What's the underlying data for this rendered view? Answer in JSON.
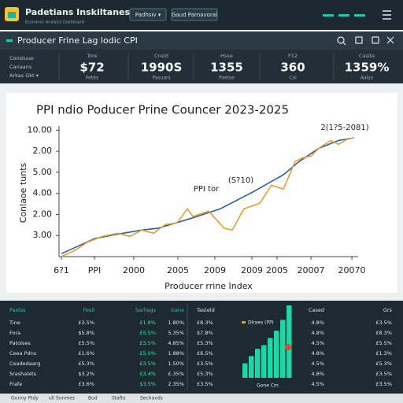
{
  "top_bar": {
    "logo": "Padetians Inskiltanes",
    "logo_sub": "Economic Analysis Dashboard",
    "buttons": [
      "Padhsiv ▾",
      "Gaud Parnavoral"
    ]
  },
  "header": {
    "title": "Producer Frine Lag lodic CPI"
  },
  "filter": {
    "lines": [
      "Constuuo",
      "Canaans",
      "Arkas Gkt ▾"
    ]
  },
  "kpis": [
    {
      "label": "Tore",
      "value": "$72",
      "sub": "Fetes"
    },
    {
      "label": "Cnsld",
      "value": "1990S",
      "sub": "Pasuars"
    },
    {
      "label": "Hsse",
      "value": "1355",
      "sub": "Paetse"
    },
    {
      "label": "F12",
      "value": "360",
      "sub": "Cal"
    },
    {
      "label": "Casite",
      "value": "1359%",
      "sub": "Aalys"
    }
  ],
  "chart_data": [
    {
      "type": "line",
      "title": "PPI ndio Poducer Prine Councer 2023-2025",
      "x_label": "Producer rrine Index",
      "y_label": "Conlaoe tunts",
      "annotations": [
        "PPI tor",
        "(S?10)",
        "2(1?5-2081)"
      ],
      "xlim": [
        0,
        38
      ],
      "ylim": [
        0,
        6.2
      ],
      "xticks": [
        {
          "value": 0.3,
          "label": "6?1"
        },
        {
          "value": 4.5,
          "label": "PPI"
        },
        {
          "value": 9.5,
          "label": "2000"
        },
        {
          "value": 15.1,
          "label": "2005"
        },
        {
          "value": 19.8,
          "label": "2009"
        },
        {
          "value": 24.5,
          "label": "2009"
        },
        {
          "value": 27.7,
          "label": "2005"
        },
        {
          "value": 32,
          "label": "20007"
        },
        {
          "value": 37.2,
          "label": "20070"
        }
      ],
      "yticks": [
        {
          "value": 1,
          "label": "3.00"
        },
        {
          "value": 2,
          "label": "2.00"
        },
        {
          "value": 3,
          "label": "4.00"
        },
        {
          "value": 4,
          "label": "5.00"
        },
        {
          "value": 5,
          "label": "2.00"
        },
        {
          "value": 6,
          "label": "10.00"
        }
      ],
      "series": [
        {
          "color": "#2f5c9e",
          "x": [
            0.3,
            2.5,
            4.5,
            7.5,
            10.5,
            12.5,
            15.5,
            17.5,
            20.5,
            24.5,
            28.5,
            30.5,
            33,
            35.5,
            37.5
          ],
          "values": [
            0.14,
            0.51,
            0.85,
            1.07,
            1.26,
            1.34,
            1.67,
            1.9,
            2.27,
            3.04,
            3.88,
            4.51,
            5.14,
            5.51,
            5.64
          ]
        },
        {
          "color": "#e0a030",
          "x": [
            0.3,
            2,
            3.5,
            5.5,
            7.5,
            9,
            10.5,
            12,
            13.5,
            15,
            16.3,
            17,
            19,
            21,
            22,
            23.5,
            25.5,
            27,
            28.5,
            30,
            31,
            32,
            33,
            34.5,
            35.5,
            36.5,
            37.5
          ],
          "values": [
            0,
            0.29,
            0.66,
            0.96,
            1.11,
            0.96,
            1.26,
            1.11,
            1.52,
            1.6,
            2.27,
            1.9,
            2.16,
            1.34,
            1.26,
            2.27,
            2.53,
            3.39,
            3.2,
            4.51,
            4.69,
            4.77,
            5.14,
            5.51,
            5.33,
            5.55,
            5.64
          ]
        }
      ]
    },
    {
      "type": "bar",
      "categories": [
        null,
        null,
        null,
        null,
        null,
        null,
        null,
        null
      ],
      "values": [
        2,
        3,
        4,
        4.5,
        5.5,
        6.5,
        8,
        10
      ],
      "color": "#1fd6a8",
      "ylim": [
        0,
        10
      ],
      "legend": "Dlraes (PPI",
      "x_label": "Gone Cm"
    }
  ],
  "table_left": {
    "header": [
      "Pasfas",
      "Fesil",
      "Sarllags",
      "Gane"
    ],
    "rows": [
      [
        "Tine",
        "£3.5%",
        "£1.8%",
        "1.80%"
      ],
      [
        "Fora",
        "$5.8%",
        "£5.5%",
        "5.35%"
      ],
      [
        "Patolses",
        "£5.5%",
        "£3.5%",
        "4.85%"
      ],
      [
        "Ceea Pdns",
        "£1.6%",
        "£5.0%",
        "1.88%"
      ],
      [
        "Ceadedaarg",
        "£5.3%",
        "£3.5%",
        "1.50%"
      ],
      [
        "Srashalets",
        "$3.2%",
        "£3.4%",
        "£.35%"
      ],
      [
        "Frafe",
        "£3.6%",
        "$3.5%",
        "2.35%"
      ]
    ]
  },
  "table_right": {
    "header": [
      "Tasteld",
      "Cased",
      "Grs"
    ],
    "rows": [
      [
        "£8.3%",
        "4.8%",
        "£3.5%"
      ],
      [
        "$7.8%",
        "4.8%",
        "£8.3%"
      ],
      [
        "£5.3%",
        "4.5%",
        "£5.5%"
      ],
      [
        "£6.5%",
        "4.8%",
        "£1.3%"
      ],
      [
        "£3.5%",
        "4.5%",
        "£5.3%"
      ],
      [
        "£5.3%",
        "4.8%",
        "£3.5%"
      ],
      [
        "£3.5%",
        "4.5%",
        "£3.5%"
      ]
    ]
  },
  "footer_tabs": [
    "Gunny Ptdy",
    "ull Sonmes",
    "Bud",
    "Stafts",
    "Sechavds"
  ]
}
